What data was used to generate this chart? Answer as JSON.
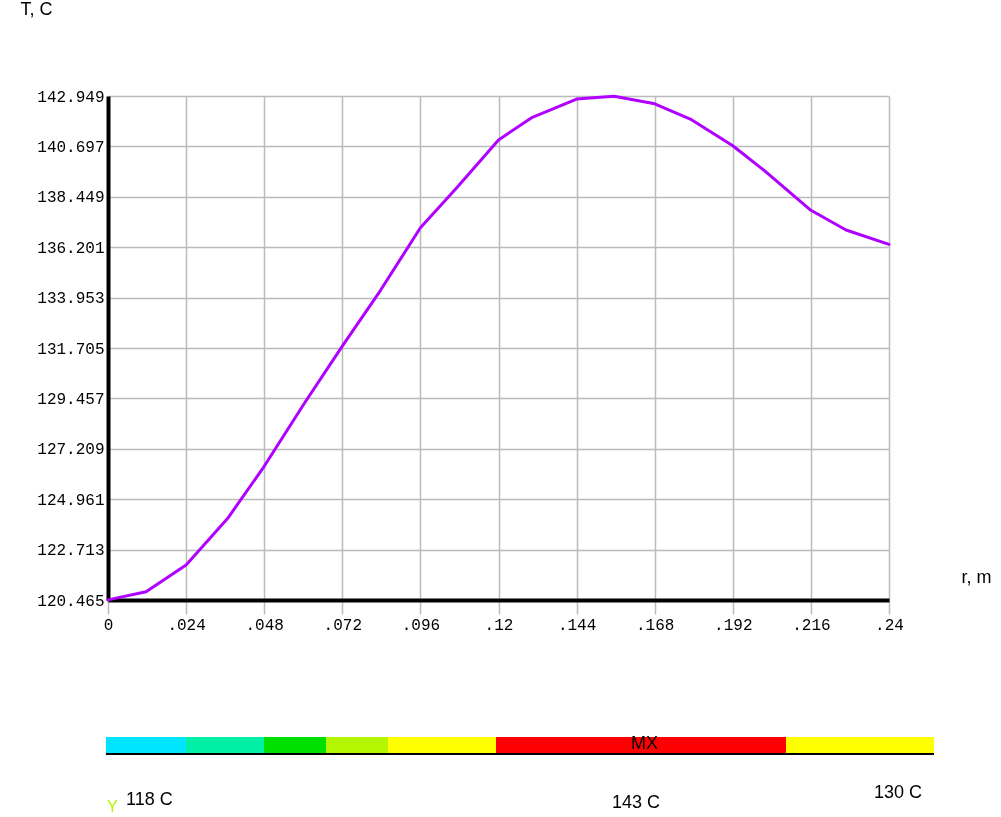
{
  "chart_data": {
    "type": "line",
    "xlabel": "r, m",
    "ylabel": "T, C",
    "x": [
      0,
      0.0117,
      0.024,
      0.0368,
      0.048,
      0.0603,
      0.072,
      0.0837,
      0.096,
      0.1071,
      0.12,
      0.1304,
      0.144,
      0.1555,
      0.168,
      0.1793,
      0.192,
      0.2018,
      0.216,
      0.2268,
      0.24
    ],
    "series": [
      {
        "color": "#b000ff",
        "values": [
          120.47,
          120.83,
          122.03,
          124.11,
          126.43,
          129.23,
          131.79,
          134.27,
          137.07,
          138.84,
          140.99,
          142.0,
          142.81,
          142.94,
          142.6,
          141.89,
          140.73,
          139.61,
          137.85,
          136.97,
          136.33
        ]
      }
    ],
    "xlim": [
      0,
      0.24
    ],
    "xticks": [
      0,
      {
        "value": 0.024,
        "label": ".024"
      },
      {
        "value": 0.048,
        "label": ".048"
      },
      {
        "value": 0.072,
        "label": ".072"
      },
      {
        "value": 0.096,
        "label": ".096"
      },
      {
        "value": 0.12,
        "label": ".12"
      },
      {
        "value": 0.144,
        "label": ".144"
      },
      {
        "value": 0.168,
        "label": ".168"
      },
      {
        "value": 0.192,
        "label": ".192"
      },
      {
        "value": 0.216,
        "label": ".216"
      },
      {
        "value": 0.24,
        "label": ".24"
      }
    ],
    "ylim": [
      120.465,
      142.949
    ],
    "yticks": [
      120.465,
      122.713,
      124.961,
      127.209,
      129.457,
      131.705,
      133.953,
      136.201,
      138.449,
      140.697,
      142.949
    ],
    "grid": true,
    "marker": "none",
    "line_style": "solid",
    "annotations": [
      "MX",
      "118 C",
      "143 C",
      "130 C",
      "Y"
    ]
  }
}
